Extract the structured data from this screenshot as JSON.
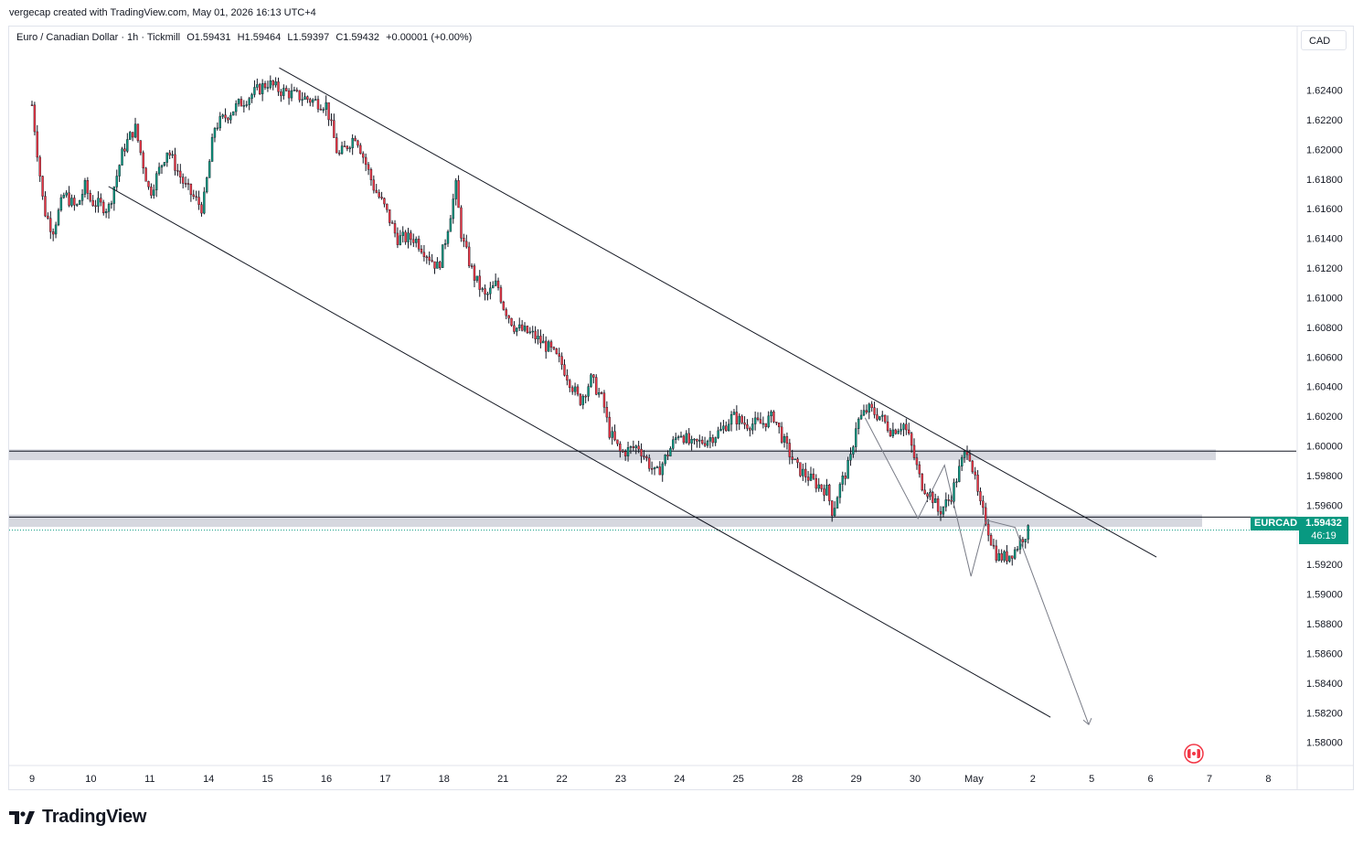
{
  "header": {
    "created_by": "vergecap created with TradingView.com, May 01, 2026 16:13 UTC+4"
  },
  "legend": {
    "symbol": "Euro / Canadian Dollar · 1h · Tickmill",
    "open": "O1.59431",
    "high": "H1.59464",
    "low": "L1.59397",
    "close": "C1.59432",
    "change": "+0.00001 (+0.00%)"
  },
  "axis": {
    "currency": "CAD"
  },
  "price_tag": {
    "symbol": "EURCAD",
    "price": "1.59432",
    "countdown": "46:19"
  },
  "brand": {
    "name": "TradingView"
  },
  "colors": {
    "up": "#089981",
    "down": "#f23645",
    "candle": "#131722",
    "zone": "#d1d4dc",
    "accent": "#089981"
  },
  "chart_data": {
    "type": "candlestick",
    "title": "Euro / Canadian Dollar · 1h · Tickmill",
    "ylim": [
      1.5785,
      1.6265
    ],
    "y_ticks": [
      "1.62400",
      "1.62200",
      "1.62000",
      "1.61800",
      "1.61600",
      "1.61400",
      "1.61200",
      "1.61000",
      "1.60800",
      "1.60600",
      "1.60400",
      "1.60200",
      "1.60000",
      "1.59800",
      "1.59600",
      "1.59200",
      "1.59000",
      "1.58800",
      "1.58600",
      "1.58400",
      "1.58200",
      "1.58000"
    ],
    "y_tick_values": [
      1.624,
      1.622,
      1.62,
      1.618,
      1.616,
      1.614,
      1.612,
      1.61,
      1.608,
      1.606,
      1.604,
      1.602,
      1.6,
      1.598,
      1.596,
      1.592,
      1.59,
      1.588,
      1.586,
      1.584,
      1.582,
      1.58
    ],
    "x_ticks": [
      "9",
      "10",
      "11",
      "14",
      "15",
      "16",
      "17",
      "18",
      "21",
      "22",
      "23",
      "24",
      "25",
      "28",
      "29",
      "30",
      "May",
      "2",
      "5",
      "6",
      "7",
      "8"
    ],
    "x_tick_index": [
      0,
      1,
      2,
      3,
      4,
      5,
      6,
      7,
      8,
      9,
      10,
      11,
      12,
      13,
      14,
      15,
      16,
      17,
      18,
      19,
      20,
      21
    ],
    "price_path": [
      [
        0.0,
        1.623
      ],
      [
        0.2,
        1.616
      ],
      [
        0.35,
        1.6145
      ],
      [
        0.55,
        1.617
      ],
      [
        0.75,
        1.616
      ],
      [
        0.9,
        1.6175
      ],
      [
        1.0,
        1.6165
      ],
      [
        1.3,
        1.616
      ],
      [
        1.55,
        1.62
      ],
      [
        1.75,
        1.6215
      ],
      [
        2.0,
        1.617
      ],
      [
        2.3,
        1.62
      ],
      [
        2.6,
        1.6175
      ],
      [
        2.9,
        1.616
      ],
      [
        3.1,
        1.6215
      ],
      [
        3.5,
        1.623
      ],
      [
        4.0,
        1.6245
      ],
      [
        4.2,
        1.624
      ],
      [
        4.6,
        1.6235
      ],
      [
        5.0,
        1.623
      ],
      [
        5.2,
        1.6195
      ],
      [
        5.5,
        1.621
      ],
      [
        5.8,
        1.6175
      ],
      [
        6.0,
        1.616
      ],
      [
        6.2,
        1.614
      ],
      [
        6.5,
        1.614
      ],
      [
        6.9,
        1.612
      ],
      [
        7.0,
        1.6135
      ],
      [
        7.2,
        1.6175
      ],
      [
        7.3,
        1.614
      ],
      [
        7.5,
        1.6115
      ],
      [
        7.7,
        1.61
      ],
      [
        7.9,
        1.611
      ],
      [
        8.0,
        1.6095
      ],
      [
        8.2,
        1.608
      ],
      [
        8.5,
        1.6075
      ],
      [
        8.8,
        1.6065
      ],
      [
        9.0,
        1.6055
      ],
      [
        9.3,
        1.603
      ],
      [
        9.5,
        1.6045
      ],
      [
        9.7,
        1.603
      ],
      [
        9.8,
        1.601
      ],
      [
        10.0,
        1.5995
      ],
      [
        10.3,
        1.6
      ],
      [
        10.6,
        1.598
      ],
      [
        10.8,
        1.5995
      ],
      [
        11.0,
        1.601
      ],
      [
        11.2,
        1.6
      ],
      [
        11.5,
        1.6005
      ],
      [
        11.7,
        1.601
      ],
      [
        11.9,
        1.602
      ],
      [
        12.1,
        1.6015
      ],
      [
        12.4,
        1.6015
      ],
      [
        12.6,
        1.602
      ],
      [
        12.8,
        1.6
      ],
      [
        13.0,
        1.5985
      ],
      [
        13.3,
        1.5975
      ],
      [
        13.5,
        1.597
      ],
      [
        13.6,
        1.5955
      ],
      [
        13.7,
        1.597
      ],
      [
        13.9,
        1.599
      ],
      [
        14.0,
        1.6015
      ],
      [
        14.2,
        1.6025
      ],
      [
        14.4,
        1.602
      ],
      [
        14.6,
        1.601
      ],
      [
        14.8,
        1.6015
      ],
      [
        14.9,
        1.6005
      ],
      [
        15.0,
        1.599
      ],
      [
        15.1,
        1.5975
      ],
      [
        15.3,
        1.5965
      ],
      [
        15.4,
        1.5955
      ],
      [
        15.6,
        1.5965
      ],
      [
        15.8,
        1.599
      ],
      [
        15.9,
        1.6
      ],
      [
        16.0,
        1.598
      ],
      [
        16.1,
        1.596
      ],
      [
        16.2,
        1.595
      ],
      [
        16.3,
        1.5935
      ],
      [
        16.4,
        1.5925
      ],
      [
        16.55,
        1.5925
      ],
      [
        16.7,
        1.593
      ],
      [
        16.85,
        1.594
      ],
      [
        16.95,
        1.5943
      ]
    ]
  }
}
